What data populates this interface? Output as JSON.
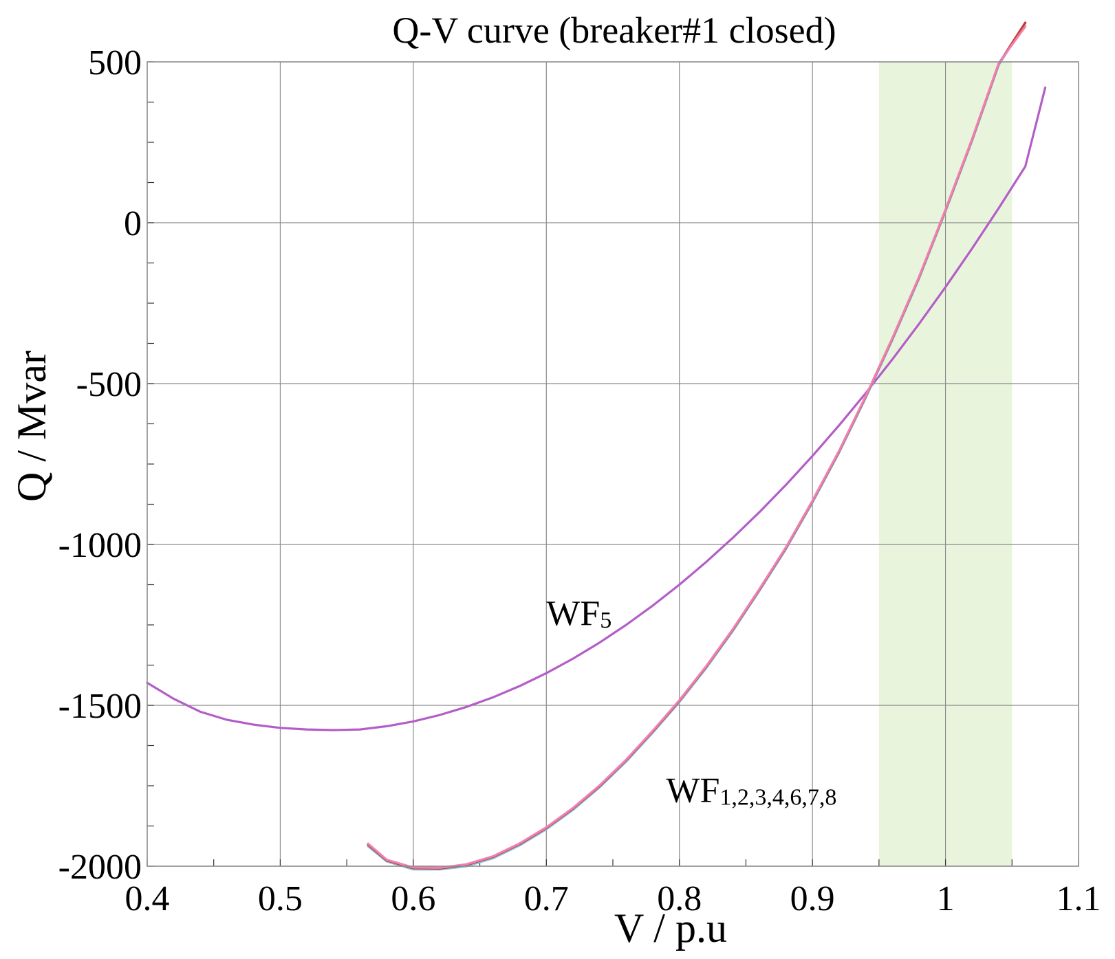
{
  "chart_data": {
    "type": "line",
    "title": "Q-V curve (breaker#1 closed)",
    "xlabel": "V / p.u",
    "ylabel": "Q / Mvar",
    "xlim": [
      0.4,
      1.1
    ],
    "ylim": [
      -2000,
      500
    ],
    "xticks": [
      0.4,
      0.5,
      0.6,
      0.7,
      0.8,
      0.9,
      1.0,
      1.1
    ],
    "xtick_labels": [
      "0.4",
      "0.5",
      "0.6",
      "0.7",
      "0.8",
      "0.9",
      "1",
      "1.1"
    ],
    "yticks": [
      -2000,
      -1500,
      -1000,
      -500,
      0,
      500
    ],
    "ytick_labels": [
      "-2000",
      "-1500",
      "-1000",
      "-500",
      "0",
      "500"
    ],
    "grid": true,
    "highlight_band": {
      "x_range": [
        0.95,
        1.05
      ],
      "color": "#e8f5dc"
    },
    "annotations": [
      {
        "text": "WF",
        "subscript": "5",
        "x": 0.7,
        "y": -1250
      },
      {
        "text": "WF",
        "subscript": "1,2,3,4,6,7,8",
        "x": 0.79,
        "y": -1800
      }
    ],
    "series": [
      {
        "color": "#b45dc8",
        "x": [
          0.4,
          0.42,
          0.44,
          0.46,
          0.48,
          0.5,
          0.52,
          0.54,
          0.56,
          0.58,
          0.6,
          0.62,
          0.64,
          0.66,
          0.68,
          0.7,
          0.72,
          0.74,
          0.76,
          0.78,
          0.8,
          0.82,
          0.84,
          0.86,
          0.88,
          0.9,
          0.92,
          0.94,
          0.96,
          0.98,
          1.0,
          1.02,
          1.04,
          1.06,
          1.075
        ],
        "y": [
          -1430,
          -1480,
          -1520,
          -1545,
          -1560,
          -1570,
          -1575,
          -1577,
          -1575,
          -1565,
          -1550,
          -1530,
          -1505,
          -1475,
          -1440,
          -1400,
          -1355,
          -1305,
          -1250,
          -1190,
          -1125,
          -1055,
          -980,
          -900,
          -815,
          -725,
          -630,
          -530,
          -425,
          -315,
          -200,
          -80,
          45,
          175,
          420
        ]
      },
      {
        "color": "#7fbfe0",
        "x": [
          0.566,
          0.58,
          0.6,
          0.62,
          0.64,
          0.66,
          0.68,
          0.7,
          0.72,
          0.74,
          0.76,
          0.78,
          0.8,
          0.82,
          0.84,
          0.86,
          0.88,
          0.9,
          0.92,
          0.94,
          0.96,
          0.98,
          1.0,
          1.02,
          1.04,
          1.06
        ],
        "y": [
          -1938,
          -1985,
          -2010,
          -2010,
          -2000,
          -1975,
          -1935,
          -1885,
          -1825,
          -1755,
          -1675,
          -1585,
          -1490,
          -1385,
          -1270,
          -1145,
          -1015,
          -870,
          -715,
          -545,
          -365,
          -175,
          35,
          255,
          490,
          620
        ]
      },
      {
        "color": "#c0392b",
        "x": [
          0.566,
          0.58,
          0.6,
          0.62,
          0.64,
          0.66,
          0.68,
          0.7,
          0.72,
          0.74,
          0.76,
          0.78,
          0.8,
          0.82,
          0.84,
          0.86,
          0.88,
          0.9,
          0.92,
          0.94,
          0.96,
          0.98,
          1.0,
          1.02,
          1.04,
          1.06
        ],
        "y": [
          -1933,
          -1982,
          -2006,
          -2007,
          -1996,
          -1971,
          -1931,
          -1881,
          -1821,
          -1751,
          -1671,
          -1581,
          -1486,
          -1381,
          -1266,
          -1141,
          -1011,
          -866,
          -711,
          -541,
          -361,
          -171,
          39,
          259,
          494,
          622
        ]
      },
      {
        "color": "#f080b0",
        "x": [
          0.566,
          0.58,
          0.6,
          0.62,
          0.64,
          0.66,
          0.68,
          0.7,
          0.72,
          0.74,
          0.76,
          0.78,
          0.8,
          0.82,
          0.84,
          0.86,
          0.88,
          0.9,
          0.92,
          0.94,
          0.96,
          0.98,
          1.0,
          1.02,
          1.04,
          1.06
        ],
        "y": [
          -1930,
          -1980,
          -2004,
          -2005,
          -1994,
          -1969,
          -1929,
          -1879,
          -1819,
          -1749,
          -1669,
          -1579,
          -1484,
          -1379,
          -1264,
          -1139,
          -1009,
          -864,
          -709,
          -539,
          -359,
          -169,
          41,
          261,
          496,
          610
        ]
      }
    ]
  }
}
